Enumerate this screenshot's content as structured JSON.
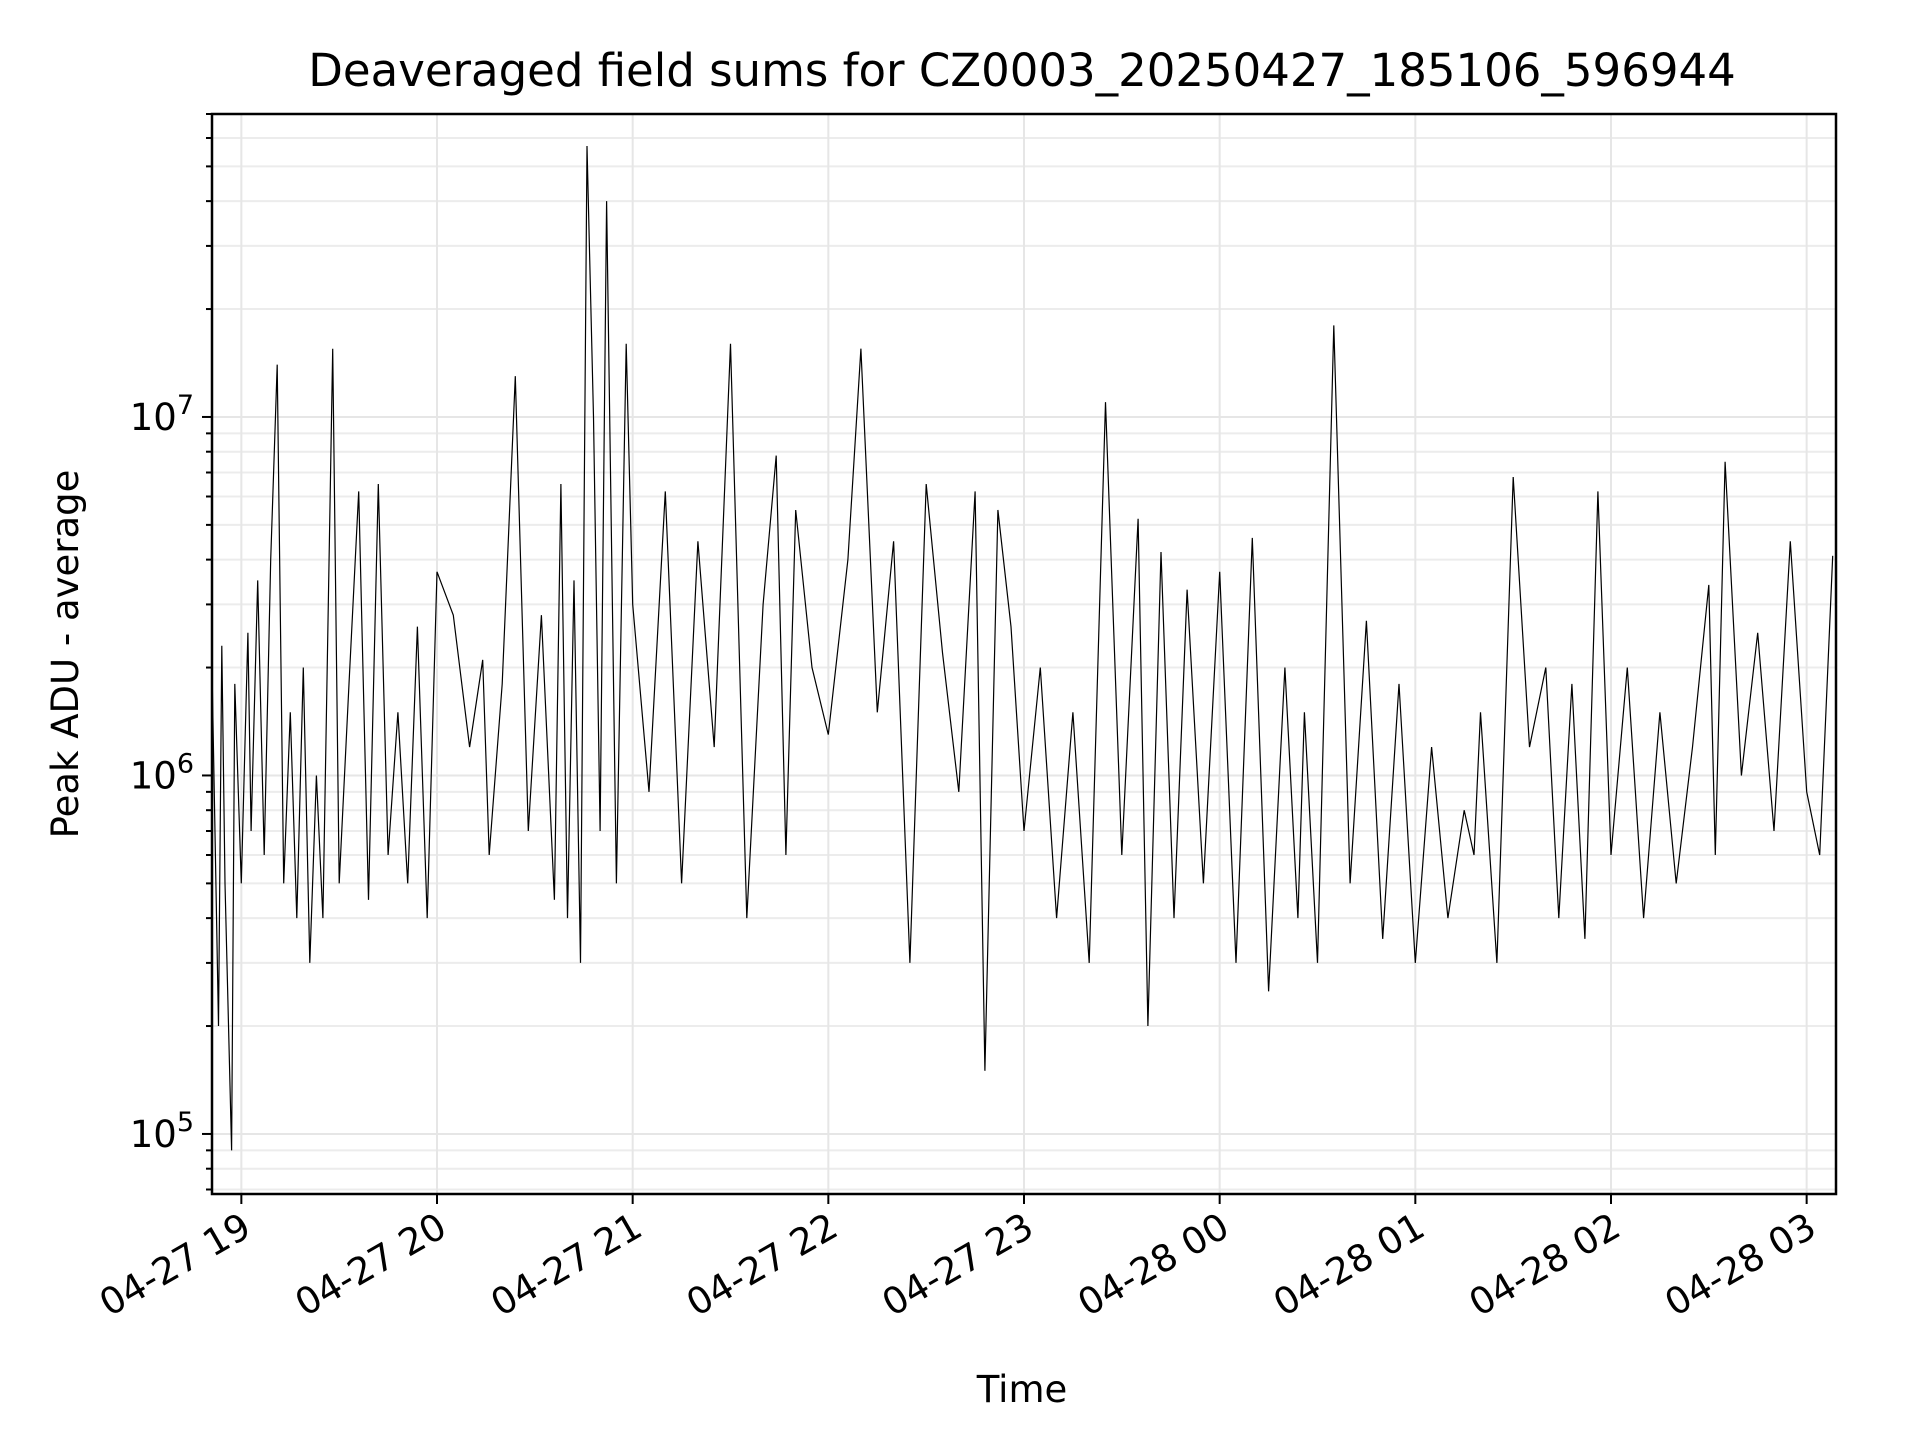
{
  "chart_data": {
    "type": "line",
    "title": "Deaveraged field sums for CZ0003_20250427_185106_596944",
    "xlabel": "Time",
    "ylabel": "Peak ADU - average",
    "yscale": "log",
    "xlim": [
      "2025-04-27 18:51",
      "2025-04-28 03:09"
    ],
    "ylim": [
      68000,
      70000000
    ],
    "grid": true,
    "x_tick_labels": [
      "04-27 19",
      "04-27 20",
      "04-27 21",
      "04-27 22",
      "04-27 23",
      "04-28 00",
      "04-28 01",
      "04-28 02",
      "04-28 03"
    ],
    "x_tick_times": [
      "2025-04-27 19:00",
      "2025-04-27 20:00",
      "2025-04-27 21:00",
      "2025-04-27 22:00",
      "2025-04-27 23:00",
      "2025-04-28 00:00",
      "2025-04-28 01:00",
      "2025-04-28 02:00",
      "2025-04-28 03:00"
    ],
    "y_ticks": [
      {
        "value": 100000,
        "base": "10",
        "exp": "5"
      },
      {
        "value": 1000000,
        "base": "10",
        "exp": "6"
      },
      {
        "value": 10000000,
        "base": "10",
        "exp": "7"
      }
    ],
    "series": [
      {
        "color": "#000000",
        "x": [
          "2025-04-27 18:51",
          "2025-04-27 18:53",
          "2025-04-27 18:54",
          "2025-04-27 18:55",
          "2025-04-27 18:57",
          "2025-04-27 18:58",
          "2025-04-27 19:00",
          "2025-04-27 19:02",
          "2025-04-27 19:03",
          "2025-04-27 19:05",
          "2025-04-27 19:07",
          "2025-04-27 19:09",
          "2025-04-27 19:11",
          "2025-04-27 19:13",
          "2025-04-27 19:15",
          "2025-04-27 19:17",
          "2025-04-27 19:19",
          "2025-04-27 19:21",
          "2025-04-27 19:23",
          "2025-04-27 19:25",
          "2025-04-27 19:28",
          "2025-04-27 19:30",
          "2025-04-27 19:33",
          "2025-04-27 19:36",
          "2025-04-27 19:39",
          "2025-04-27 19:42",
          "2025-04-27 19:45",
          "2025-04-27 19:48",
          "2025-04-27 19:51",
          "2025-04-27 19:54",
          "2025-04-27 19:57",
          "2025-04-27 20:00",
          "2025-04-27 20:05",
          "2025-04-27 20:10",
          "2025-04-27 20:14",
          "2025-04-27 20:16",
          "2025-04-27 20:20",
          "2025-04-27 20:24",
          "2025-04-27 20:28",
          "2025-04-27 20:32",
          "2025-04-27 20:36",
          "2025-04-27 20:38",
          "2025-04-27 20:40",
          "2025-04-27 20:42",
          "2025-04-27 20:44",
          "2025-04-27 20:46",
          "2025-04-27 20:48",
          "2025-04-27 20:50",
          "2025-04-27 20:52",
          "2025-04-27 20:55",
          "2025-04-27 20:58",
          "2025-04-27 21:00",
          "2025-04-27 21:05",
          "2025-04-27 21:10",
          "2025-04-27 21:15",
          "2025-04-27 21:20",
          "2025-04-27 21:25",
          "2025-04-27 21:30",
          "2025-04-27 21:35",
          "2025-04-27 21:40",
          "2025-04-27 21:44",
          "2025-04-27 21:47",
          "2025-04-27 21:50",
          "2025-04-27 21:55",
          "2025-04-27 22:00",
          "2025-04-27 22:06",
          "2025-04-27 22:10",
          "2025-04-27 22:15",
          "2025-04-27 22:20",
          "2025-04-27 22:25",
          "2025-04-27 22:30",
          "2025-04-27 22:35",
          "2025-04-27 22:40",
          "2025-04-27 22:45",
          "2025-04-27 22:48",
          "2025-04-27 22:52",
          "2025-04-27 22:56",
          "2025-04-27 23:00",
          "2025-04-27 23:05",
          "2025-04-27 23:10",
          "2025-04-27 23:15",
          "2025-04-27 23:20",
          "2025-04-27 23:25",
          "2025-04-27 23:30",
          "2025-04-27 23:35",
          "2025-04-27 23:38",
          "2025-04-27 23:42",
          "2025-04-27 23:46",
          "2025-04-27 23:50",
          "2025-04-27 23:55",
          "2025-04-28 00:00",
          "2025-04-28 00:05",
          "2025-04-28 00:10",
          "2025-04-28 00:15",
          "2025-04-28 00:20",
          "2025-04-28 00:24",
          "2025-04-28 00:26",
          "2025-04-28 00:30",
          "2025-04-28 00:35",
          "2025-04-28 00:40",
          "2025-04-28 00:45",
          "2025-04-28 00:50",
          "2025-04-28 00:55",
          "2025-04-28 01:00",
          "2025-04-28 01:05",
          "2025-04-28 01:10",
          "2025-04-28 01:15",
          "2025-04-28 01:18",
          "2025-04-28 01:20",
          "2025-04-28 01:25",
          "2025-04-28 01:30",
          "2025-04-28 01:35",
          "2025-04-28 01:40",
          "2025-04-28 01:44",
          "2025-04-28 01:48",
          "2025-04-28 01:52",
          "2025-04-28 01:56",
          "2025-04-28 02:00",
          "2025-04-28 02:05",
          "2025-04-28 02:10",
          "2025-04-28 02:15",
          "2025-04-28 02:20",
          "2025-04-28 02:25",
          "2025-04-28 02:30",
          "2025-04-28 02:32",
          "2025-04-28 02:35",
          "2025-04-28 02:40",
          "2025-04-28 02:45",
          "2025-04-28 02:50",
          "2025-04-28 02:55",
          "2025-04-28 03:00",
          "2025-04-28 03:04",
          "2025-04-28 03:08"
        ],
        "y": [
          2000000,
          200000,
          2300000,
          500000,
          90000,
          1800000,
          500000,
          2500000,
          700000,
          3500000,
          600000,
          4000000,
          14000000,
          500000,
          1500000,
          400000,
          2000000,
          300000,
          1000000,
          400000,
          15500000,
          500000,
          1800000,
          6200000,
          450000,
          6500000,
          600000,
          1500000,
          500000,
          2600000,
          400000,
          3700000,
          2800000,
          1200000,
          2100000,
          600000,
          1800000,
          13000000,
          700000,
          2800000,
          450000,
          6500000,
          400000,
          3500000,
          300000,
          57000000,
          10000000,
          700000,
          40000000,
          500000,
          16000000,
          3000000,
          900000,
          6200000,
          500000,
          4500000,
          1200000,
          16000000,
          400000,
          3000000,
          7800000,
          600000,
          5500000,
          2000000,
          1300000,
          4000000,
          15500000,
          1500000,
          4500000,
          300000,
          6500000,
          2200000,
          900000,
          6200000,
          150000,
          5500000,
          2600000,
          700000,
          2000000,
          400000,
          1500000,
          300000,
          11000000,
          600000,
          5200000,
          200000,
          4200000,
          400000,
          3300000,
          500000,
          3700000,
          300000,
          4600000,
          250000,
          2000000,
          400000,
          1500000,
          300000,
          18000000,
          500000,
          2700000,
          350000,
          1800000,
          300000,
          1200000,
          400000,
          800000,
          600000,
          1500000,
          300000,
          6800000,
          1200000,
          2000000,
          400000,
          1800000,
          350000,
          6200000,
          600000,
          2000000,
          400000,
          1500000,
          500000,
          1200000,
          3400000,
          600000,
          7500000,
          1000000,
          2500000,
          700000,
          4500000,
          900000,
          600000,
          4100000
        ]
      }
    ]
  }
}
